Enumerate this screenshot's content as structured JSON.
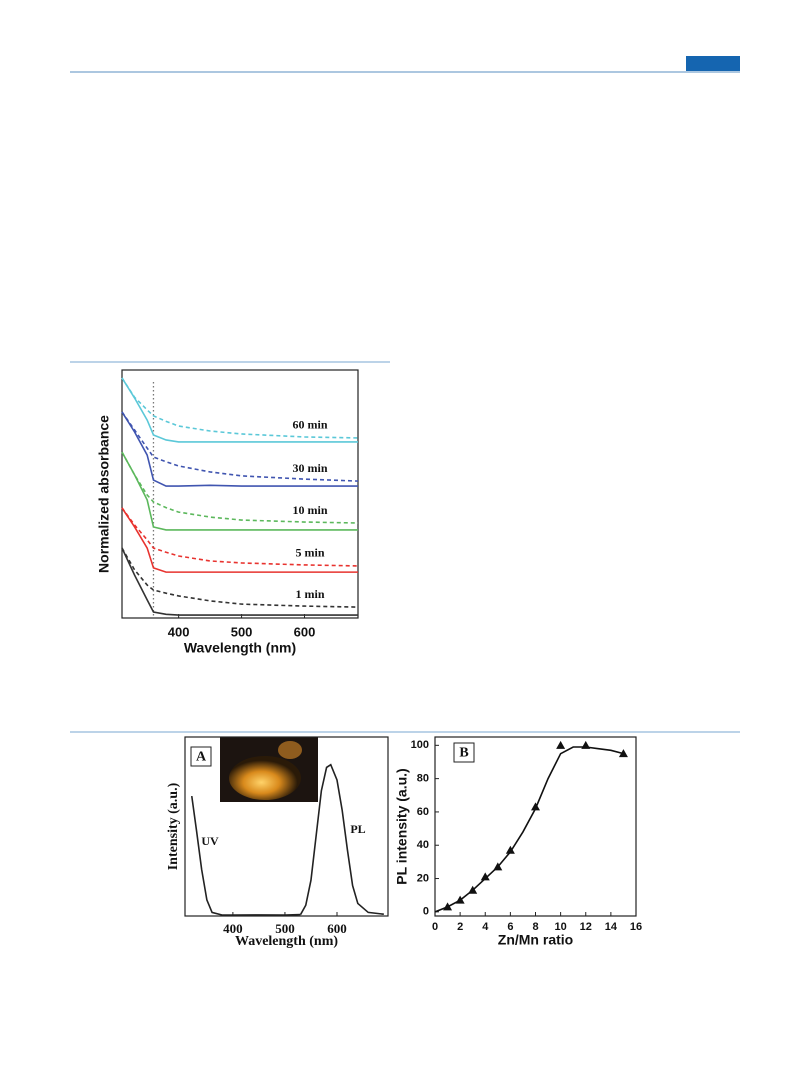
{
  "chart_data": [
    {
      "type": "line",
      "y_label": "Normalized absorbance",
      "x_label": "Wavelength (nm)",
      "xlim": [
        310,
        685
      ],
      "xticks": [
        400,
        500,
        600
      ],
      "ylim": [
        0,
        10
      ],
      "vline": 360,
      "x": [
        310,
        330,
        350,
        360,
        380,
        400,
        450,
        500,
        600,
        685
      ],
      "series": [
        {
          "name": "1 min",
          "color": "#333333",
          "values": [
            2.82,
            1.73,
            0.73,
            0.24,
            0.15,
            0.12,
            0.12,
            0.12,
            0.12,
            0.12
          ],
          "dashed_values": [
            2.82,
            1.94,
            1.33,
            1.13,
            1.0,
            0.89,
            0.69,
            0.56,
            0.48,
            0.44
          ]
        },
        {
          "name": "5 min",
          "color": "#e8332f",
          "values": [
            4.44,
            3.67,
            2.82,
            2.02,
            1.85,
            1.85,
            1.85,
            1.85,
            1.85,
            1.85
          ],
          "dashed_values": [
            4.44,
            3.75,
            3.15,
            2.82,
            2.65,
            2.5,
            2.3,
            2.22,
            2.14,
            2.1
          ]
        },
        {
          "name": "10 min",
          "color": "#5cb85c",
          "values": [
            6.69,
            5.77,
            4.76,
            3.67,
            3.55,
            3.55,
            3.55,
            3.55,
            3.55,
            3.55
          ],
          "dashed_values": [
            6.69,
            5.77,
            4.96,
            4.68,
            4.45,
            4.27,
            4.07,
            3.95,
            3.87,
            3.83
          ]
        },
        {
          "name": "30 min",
          "color": "#4055b0",
          "values": [
            8.31,
            7.5,
            6.57,
            5.56,
            5.32,
            5.32,
            5.35,
            5.32,
            5.32,
            5.32
          ],
          "dashed_values": [
            8.31,
            7.58,
            6.85,
            6.49,
            6.3,
            6.13,
            5.89,
            5.73,
            5.6,
            5.52
          ]
        },
        {
          "name": "60 min",
          "color": "#5bc8d8",
          "values": [
            9.68,
            8.87,
            7.98,
            7.38,
            7.18,
            7.1,
            7.1,
            7.1,
            7.1,
            7.1
          ],
          "dashed_values": [
            9.68,
            8.9,
            8.39,
            8.15,
            7.93,
            7.74,
            7.54,
            7.42,
            7.3,
            7.26
          ]
        }
      ]
    },
    {
      "type": "line",
      "panel": "A",
      "y_label": "Intensity (a.u.)",
      "x_label": "Wavelength (nm)",
      "xlim": [
        308,
        698
      ],
      "xticks": [
        400,
        500,
        600
      ],
      "ylim": [
        0,
        100
      ],
      "series": [
        {
          "name": "UV",
          "color": "#222222",
          "x": [
            321,
            330,
            340,
            350,
            360,
            380,
            400,
            450,
            500,
            530
          ],
          "values": [
            67,
            48,
            26,
            9,
            2,
            0.5,
            0.5,
            0.6,
            0.5,
            0.8
          ]
        },
        {
          "name": "PL",
          "color": "#222222",
          "x": [
            530,
            540,
            550,
            560,
            570,
            580,
            588,
            600,
            610,
            620,
            630,
            640,
            660,
            690
          ],
          "values": [
            0.8,
            6,
            20,
            45,
            70,
            83,
            84.5,
            76,
            59,
            37,
            17,
            7,
            2,
            1
          ]
        }
      ]
    },
    {
      "type": "scatter",
      "panel": "B",
      "y_label": "PL intensity (a.u.)",
      "x_label": "Zn/Mn ratio",
      "xlim": [
        0,
        16
      ],
      "xticks": [
        0,
        2,
        4,
        6,
        8,
        10,
        12,
        14,
        16
      ],
      "ylim": [
        -2.5,
        105
      ],
      "yticks": [
        0,
        20,
        40,
        60,
        80,
        100
      ],
      "series": [
        {
          "color": "#111111",
          "marker": "triangle",
          "x": [
            1,
            2,
            3,
            4,
            5,
            6,
            8,
            10,
            12,
            15
          ],
          "values": [
            3,
            7,
            13,
            21,
            27,
            37,
            63,
            100,
            100,
            95
          ]
        }
      ],
      "fit": {
        "x": [
          0,
          1,
          2,
          3,
          4,
          5,
          6,
          7,
          8,
          9,
          10,
          11,
          12,
          13,
          14,
          15
        ],
        "values": [
          0,
          3,
          7,
          13,
          20,
          27,
          36,
          48,
          62,
          80,
          95,
          99,
          99,
          98,
          97,
          95
        ]
      }
    }
  ]
}
